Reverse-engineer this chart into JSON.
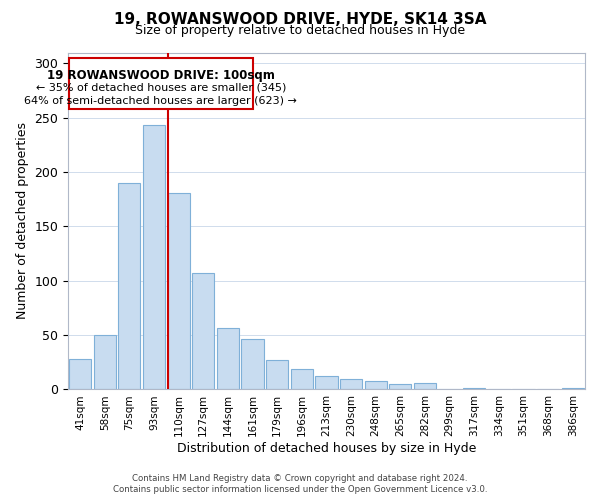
{
  "title": "19, ROWANSWOOD DRIVE, HYDE, SK14 3SA",
  "subtitle": "Size of property relative to detached houses in Hyde",
  "xlabel": "Distribution of detached houses by size in Hyde",
  "ylabel": "Number of detached properties",
  "categories": [
    "41sqm",
    "58sqm",
    "75sqm",
    "93sqm",
    "110sqm",
    "127sqm",
    "144sqm",
    "161sqm",
    "179sqm",
    "196sqm",
    "213sqm",
    "230sqm",
    "248sqm",
    "265sqm",
    "282sqm",
    "299sqm",
    "317sqm",
    "334sqm",
    "351sqm",
    "368sqm",
    "386sqm"
  ],
  "values": [
    28,
    50,
    190,
    243,
    181,
    107,
    57,
    46,
    27,
    19,
    12,
    10,
    8,
    5,
    6,
    0,
    1,
    0,
    0,
    0,
    1
  ],
  "bar_color": "#c8dcf0",
  "bar_edge_color": "#7fb0d8",
  "highlight_color": "#cc0000",
  "annotation_title": "19 ROWANSWOOD DRIVE: 100sqm",
  "annotation_line1": "← 35% of detached houses are smaller (345)",
  "annotation_line2": "64% of semi-detached houses are larger (623) →",
  "ylim": [
    0,
    310
  ],
  "yticks": [
    0,
    50,
    100,
    150,
    200,
    250,
    300
  ],
  "footer_line1": "Contains HM Land Registry data © Crown copyright and database right 2024.",
  "footer_line2": "Contains public sector information licensed under the Open Government Licence v3.0.",
  "background_color": "#ffffff",
  "grid_color": "#d0dcec"
}
